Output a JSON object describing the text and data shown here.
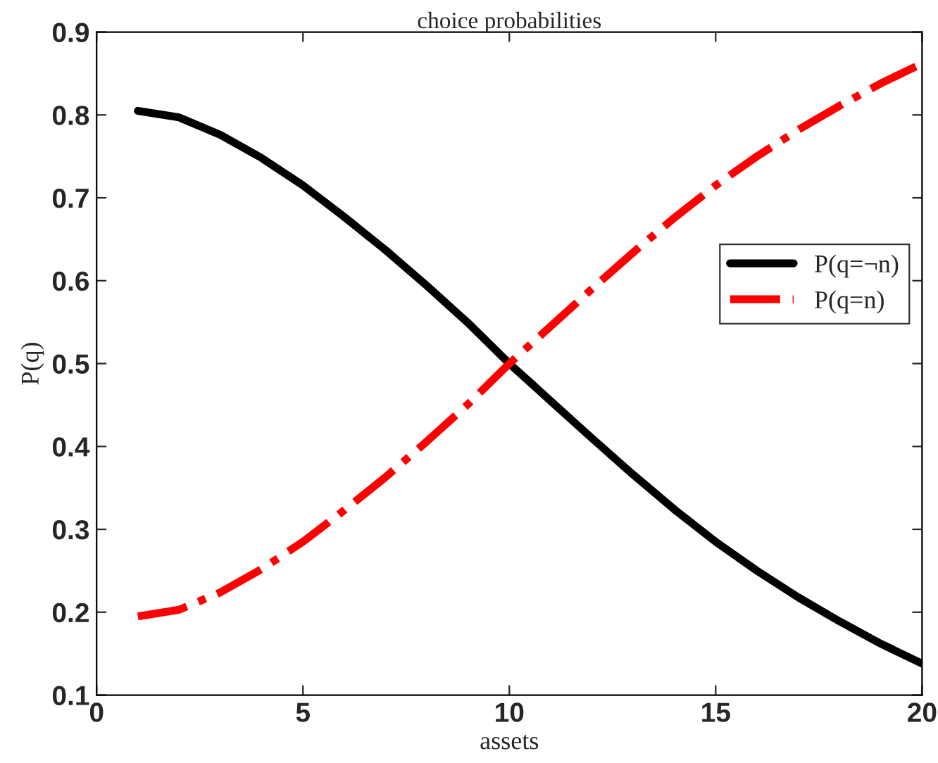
{
  "chart_data": {
    "type": "line",
    "title": "choice probabilities",
    "xlabel": "assets",
    "ylabel": "P(q)",
    "x": [
      1,
      2,
      3,
      4,
      5,
      6,
      7,
      8,
      9,
      10,
      11,
      12,
      13,
      14,
      15,
      16,
      17,
      18,
      19,
      20
    ],
    "series": [
      {
        "name": "P(q=¬n)",
        "color": "#000000",
        "line_style": "solid",
        "values": [
          0.805,
          0.797,
          0.776,
          0.748,
          0.715,
          0.677,
          0.637,
          0.594,
          0.549,
          0.5,
          0.455,
          0.41,
          0.366,
          0.324,
          0.285,
          0.25,
          0.218,
          0.189,
          0.162,
          0.138
        ]
      },
      {
        "name": "P(q=n)",
        "color": "#ff0000",
        "line_style": "dashdot",
        "values": [
          0.195,
          0.203,
          0.224,
          0.252,
          0.285,
          0.323,
          0.363,
          0.406,
          0.451,
          0.5,
          0.545,
          0.59,
          0.634,
          0.676,
          0.715,
          0.75,
          0.782,
          0.811,
          0.838,
          0.862
        ]
      }
    ],
    "xlim": [
      0,
      20
    ],
    "xticks": [
      0,
      5,
      10,
      15,
      20
    ],
    "ylim": [
      0.1,
      0.9
    ],
    "yticks": [
      0.1,
      0.2,
      0.3,
      0.4,
      0.5,
      0.6,
      0.7,
      0.8,
      0.9
    ],
    "grid": false,
    "legend": "right",
    "marker": "none"
  }
}
